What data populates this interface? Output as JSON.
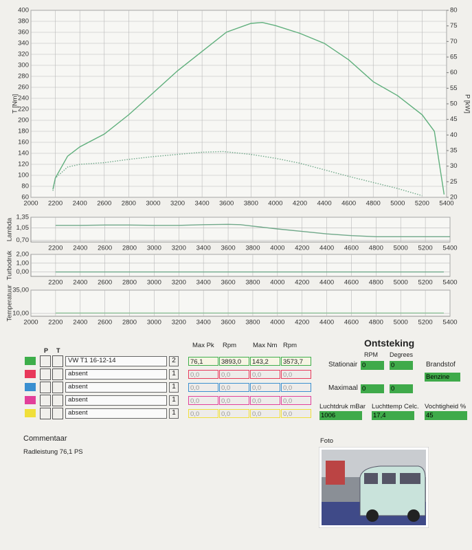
{
  "chart_data": [
    {
      "type": "line",
      "y_label": "T [Nm]",
      "y2_label": "P [kW]",
      "xlim": [
        2000,
        5400
      ],
      "xticks": [
        2000,
        2200,
        2400,
        2600,
        2800,
        3000,
        3200,
        3400,
        3600,
        3800,
        4000,
        4200,
        4400,
        4600,
        4800,
        5000,
        5200,
        5400
      ],
      "ylim": [
        60,
        400
      ],
      "yticks": [
        60,
        80,
        100,
        120,
        140,
        160,
        180,
        200,
        220,
        240,
        260,
        280,
        300,
        320,
        340,
        360,
        380,
        400
      ],
      "y2lim": [
        20,
        80
      ],
      "y2ticks": [
        20,
        25,
        30,
        35,
        40,
        45,
        50,
        55,
        60,
        65,
        70,
        75,
        80
      ],
      "grid": true,
      "series": [
        {
          "color": "#5faf7c",
          "axis": "y2",
          "x": [
            2180,
            2200,
            2300,
            2400,
            2600,
            2800,
            3000,
            3200,
            3400,
            3600,
            3800,
            3893,
            4000,
            4200,
            4400,
            4600,
            4800,
            5000,
            5200,
            5300,
            5380
          ],
          "values": [
            22.6,
            26.2,
            33.2,
            36.2,
            40.3,
            46.5,
            53.5,
            60.6,
            66.8,
            73.0,
            75.8,
            76.1,
            75.1,
            72.6,
            69.4,
            64.1,
            57.1,
            52.6,
            46.5,
            41.2,
            20.9
          ]
        },
        {
          "color": "#6fa889",
          "line_style": "dotted",
          "x": [
            2180,
            2200,
            2300,
            2400,
            2600,
            2800,
            3000,
            3200,
            3400,
            3573,
            3800,
            4000,
            4200,
            4400,
            4600,
            4800,
            5000,
            5200
          ],
          "values": [
            72,
            95,
            115,
            120,
            123,
            129,
            134,
            138,
            142,
            143.2,
            138,
            131,
            122,
            110,
            98,
            87,
            76,
            63
          ]
        }
      ]
    },
    {
      "type": "line",
      "y_label": "Lambda",
      "xlim": [
        2000,
        5400
      ],
      "xticks": [
        2200,
        2400,
        2600,
        2800,
        3000,
        3200,
        3400,
        3600,
        3800,
        4000,
        4200,
        4400,
        4600,
        4800,
        5000,
        5200,
        5400
      ],
      "ylim": [
        0.65,
        1.35
      ],
      "yticks": [
        {
          "value": 0.7,
          "label": "0,70"
        },
        {
          "value": 1.05,
          "label": "1,05"
        },
        {
          "value": 1.35,
          "label": "1,35"
        }
      ],
      "grid": true,
      "series": [
        {
          "color": "#6fa889",
          "x": [
            2200,
            2400,
            2600,
            2800,
            3000,
            3200,
            3400,
            3600,
            3700,
            3800,
            4000,
            4200,
            4400,
            4600,
            4800,
            5000,
            5200,
            5400
          ],
          "values": [
            1.12,
            1.12,
            1.13,
            1.13,
            1.12,
            1.12,
            1.14,
            1.15,
            1.14,
            1.1,
            1.02,
            0.95,
            0.88,
            0.83,
            0.8,
            0.8,
            0.8,
            0.8
          ]
        }
      ]
    },
    {
      "type": "line",
      "y_label": "Turbodruk",
      "xlim": [
        2000,
        5400
      ],
      "xticks": [
        2200,
        2400,
        2600,
        2800,
        3000,
        3200,
        3400,
        3600,
        3800,
        4000,
        4200,
        4400,
        4600,
        4800,
        5000,
        5200,
        5400
      ],
      "ylim": [
        -0.5,
        2
      ],
      "yticks": [
        {
          "value": 0,
          "label": "0,00"
        },
        {
          "value": 1,
          "label": "1,00"
        },
        {
          "value": 2,
          "label": "2,00"
        }
      ],
      "grid": true,
      "series": [
        {
          "color": "#6fa889",
          "x": [
            2200,
            5350
          ],
          "values": [
            0,
            0
          ]
        }
      ]
    },
    {
      "type": "line",
      "y_label": "Temperatuur",
      "xlim": [
        2000,
        5400
      ],
      "xticks": [
        2000,
        2200,
        2400,
        2600,
        2800,
        3000,
        3200,
        3400,
        3600,
        3800,
        4000,
        4200,
        4400,
        4600,
        4800,
        5000,
        5200,
        5400
      ],
      "ylim": [
        7,
        35
      ],
      "yticks": [
        {
          "value": 10,
          "label": "10,00"
        },
        {
          "value": 35,
          "label": "35,00"
        }
      ],
      "grid": true,
      "series": [
        {
          "color": "#8fc29a",
          "x": [
            2200,
            5350
          ],
          "values": [
            10.5,
            10.5
          ]
        }
      ]
    }
  ],
  "runs": {
    "headers": [
      "P",
      "T"
    ],
    "result_headers": [
      "Max Pk",
      "Rpm",
      "Max Nm",
      "Rpm"
    ],
    "rows": [
      {
        "color": "#3dae4a",
        "name": "VW  T1 16-12-14",
        "count": "2",
        "values": [
          "76,1",
          "3893,0",
          "143,2",
          "3573,7"
        ]
      },
      {
        "color": "#e8385a",
        "name": "absent",
        "count": "1",
        "values": [
          "0,0",
          "0,0",
          "0,0",
          "0,0"
        ]
      },
      {
        "color": "#3a8fd0",
        "name": "absent",
        "count": "1",
        "values": [
          "0,0",
          "0,0",
          "0,0",
          "0,0"
        ]
      },
      {
        "color": "#e23f9a",
        "name": "absent",
        "count": "1",
        "values": [
          "0,0",
          "0,0",
          "0,0",
          "0,0"
        ]
      },
      {
        "color": "#f0df3a",
        "name": "absent",
        "count": "1",
        "values": [
          "0,0",
          "0,0",
          "0,0",
          "0,0"
        ]
      }
    ]
  },
  "ignition": {
    "title": "Ontsteking",
    "col_headers": [
      "RPM",
      "Degrees"
    ],
    "rows": [
      {
        "label": "Stationair",
        "rpm": "0",
        "degrees": "0"
      },
      {
        "label": "Maximaal",
        "rpm": "0",
        "degrees": "0"
      }
    ],
    "fuel_label": "Brandstof",
    "fuel": "Benzine"
  },
  "conditions": [
    {
      "label": "Luchtdruk mBar",
      "value": "1006"
    },
    {
      "label": "Luchttemp Celc.",
      "value": "17,4"
    },
    {
      "label": "Vochtigheid %",
      "value": "45"
    }
  ],
  "comment": {
    "title": "Commentaar",
    "text": "Radleistung 76,1 PS"
  },
  "photo": {
    "title": "Foto"
  }
}
